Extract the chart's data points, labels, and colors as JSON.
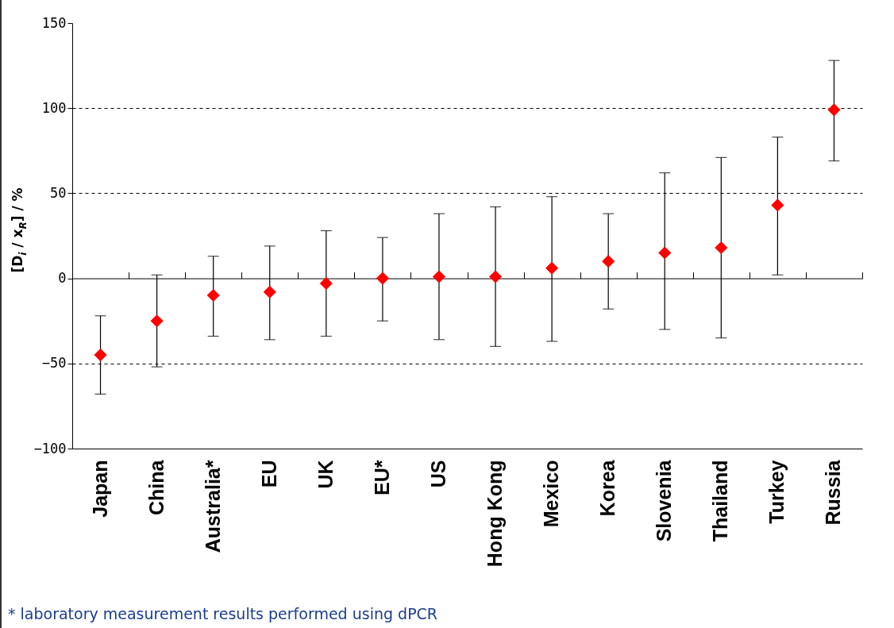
{
  "chart_data": {
    "type": "scatter",
    "ylabel": "[D$_{i}$ / x$_{R}$] / %",
    "categories": [
      "Japan",
      "China",
      "Australia*",
      "EU",
      "UK",
      "EU*",
      "US",
      "Hong Kong",
      "Mexico",
      "Korea",
      "Slovenia",
      "Thailand",
      "Turkey",
      "Russia"
    ],
    "values": [
      -45,
      -25,
      -10,
      -8,
      -3,
      0,
      1,
      1,
      6,
      10,
      15,
      18,
      43,
      99
    ],
    "errors": [
      [
        -68,
        -22
      ],
      [
        -52,
        2
      ],
      [
        -34,
        13
      ],
      [
        -36,
        19
      ],
      [
        -34,
        28
      ],
      [
        -25,
        24
      ],
      [
        -36,
        38
      ],
      [
        -40,
        42
      ],
      [
        -37,
        48
      ],
      [
        -18,
        38
      ],
      [
        -30,
        62
      ],
      [
        -35,
        71
      ],
      [
        2,
        83
      ],
      [
        69,
        128
      ]
    ],
    "color": "#ff0000",
    "marker": "diamond",
    "ylim": [
      -100,
      150
    ],
    "yticks": [
      -100,
      -50,
      0,
      50,
      100,
      150
    ],
    "grid": "y",
    "annotations": [
      "* laboratory measurement results performed using dPCR"
    ]
  }
}
